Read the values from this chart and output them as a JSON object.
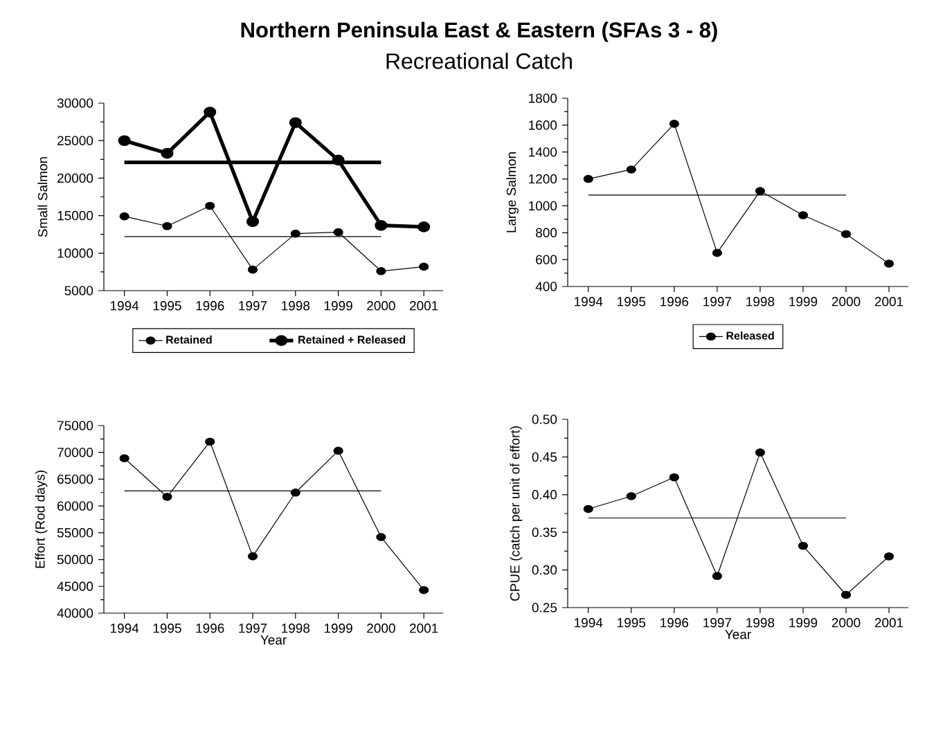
{
  "chart_data": [
    {
      "type": "line",
      "title": "Northern Peninsula East & Eastern (SFAs 3 - 8)",
      "subtitle": "Recreational Catch",
      "ylabel": "Small Salmon",
      "categories": [
        "1994",
        "1995",
        "1996",
        "1997",
        "1998",
        "1999",
        "2000",
        "2001"
      ],
      "ylim": [
        5000,
        30000
      ],
      "yticks": [
        5000,
        10000,
        15000,
        20000,
        25000,
        30000
      ],
      "legend": "bottom",
      "marker": "circle",
      "series": [
        {
          "name": "Retained",
          "color": "#000000",
          "values": [
            14900,
            13600,
            16300,
            7800,
            12600,
            12800,
            7600,
            8200
          ]
        },
        {
          "name": "Retained + Released",
          "color": "#000000",
          "values": [
            25000,
            23300,
            28800,
            14200,
            27400,
            22400,
            13700,
            13500
          ]
        },
        {
          "color": "#000000",
          "marker": "none",
          "values": [
            12200,
            12200,
            12200,
            12200,
            12200,
            12200,
            12200,
            null
          ]
        },
        {
          "color": "#000000",
          "marker": "none",
          "values": [
            22100,
            22100,
            22100,
            22100,
            22100,
            22100,
            22100,
            null
          ]
        }
      ]
    },
    {
      "type": "line",
      "ylabel": "Large Salmon",
      "categories": [
        "1994",
        "1995",
        "1996",
        "1997",
        "1998",
        "1999",
        "2000",
        "2001"
      ],
      "ylim": [
        400,
        1800
      ],
      "yticks": [
        400,
        600,
        800,
        1000,
        1200,
        1400,
        1600,
        1800
      ],
      "legend": "bottom",
      "marker": "circle",
      "series": [
        {
          "name": "Released",
          "color": "#000000",
          "values": [
            1200,
            1270,
            1610,
            650,
            1110,
            930,
            790,
            570
          ]
        },
        {
          "color": "#000000",
          "marker": "none",
          "values": [
            1080,
            1080,
            1080,
            1080,
            1080,
            1080,
            1080,
            null
          ]
        }
      ]
    },
    {
      "type": "line",
      "xlabel": "Year",
      "ylabel": "Effort (Rod days)",
      "categories": [
        "1994",
        "1995",
        "1996",
        "1997",
        "1998",
        "1999",
        "2000",
        "2001"
      ],
      "ylim": [
        40000,
        75000
      ],
      "yticks": [
        40000,
        45000,
        50000,
        55000,
        60000,
        65000,
        70000,
        75000
      ],
      "marker": "circle",
      "series": [
        {
          "color": "#000000",
          "values": [
            68900,
            61700,
            72000,
            50600,
            62500,
            70300,
            54200,
            44300
          ]
        },
        {
          "color": "#000000",
          "marker": "none",
          "values": [
            62800,
            62800,
            62800,
            62800,
            62800,
            62800,
            62800,
            null
          ]
        }
      ]
    },
    {
      "type": "line",
      "xlabel": "Year",
      "ylabel": "CPUE (catch per unit of effort)",
      "categories": [
        "1994",
        "1995",
        "1996",
        "1997",
        "1998",
        "1999",
        "2000",
        "2001"
      ],
      "ylim": [
        0.25,
        0.5
      ],
      "yticks": [
        0.25,
        {
          "value": 0.3,
          "label": "0.30"
        },
        0.35,
        {
          "value": 0.4,
          "label": "0.40"
        },
        0.45,
        {
          "value": 0.5,
          "label": "0.50"
        }
      ],
      "marker": "circle",
      "series": [
        {
          "color": "#000000",
          "values": [
            0.381,
            0.398,
            0.423,
            0.292,
            0.456,
            0.332,
            0.267,
            0.318
          ]
        },
        {
          "color": "#000000",
          "marker": "none",
          "values": [
            0.369,
            0.369,
            0.369,
            0.369,
            0.369,
            0.369,
            0.369,
            null
          ]
        }
      ]
    }
  ]
}
